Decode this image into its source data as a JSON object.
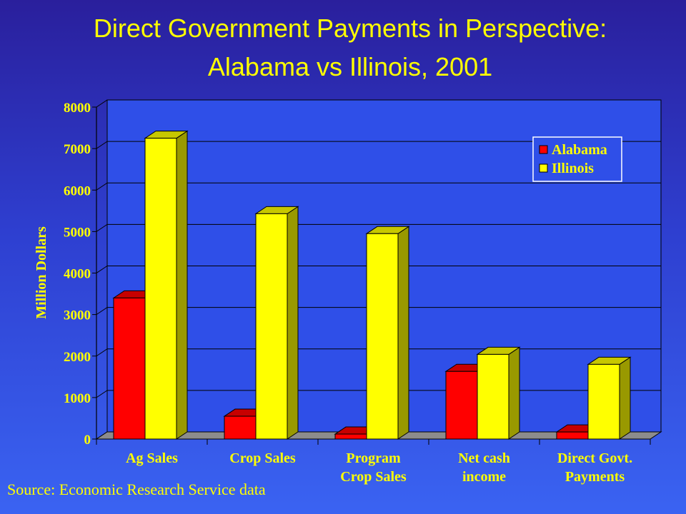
{
  "title_line1": "Direct Government Payments in Perspective:",
  "title_line2": "Alabama vs Illinois, 2001",
  "source": "Source: Economic Research Service data",
  "colors": {
    "text": "#ffff00",
    "alabama": "#ff0000",
    "illinois": "#ffff00"
  },
  "chart_data": {
    "type": "bar",
    "categories": [
      [
        "Ag Sales"
      ],
      [
        "Crop Sales"
      ],
      [
        "Program",
        "Crop Sales"
      ],
      [
        "Net cash",
        "income"
      ],
      [
        "Direct Govt.",
        "Payments"
      ]
    ],
    "series": [
      {
        "name": "Alabama",
        "values": [
          3400,
          550,
          120,
          1630,
          170
        ]
      },
      {
        "name": "Illinois",
        "values": [
          7250,
          5430,
          4950,
          2040,
          1800
        ]
      }
    ],
    "ylabel": "Million Dollars",
    "yticks": [
      0,
      1000,
      2000,
      3000,
      4000,
      5000,
      6000,
      7000,
      8000
    ],
    "ylim": [
      0,
      8000
    ],
    "grid": true,
    "legend": "top-right",
    "three_d": true
  }
}
